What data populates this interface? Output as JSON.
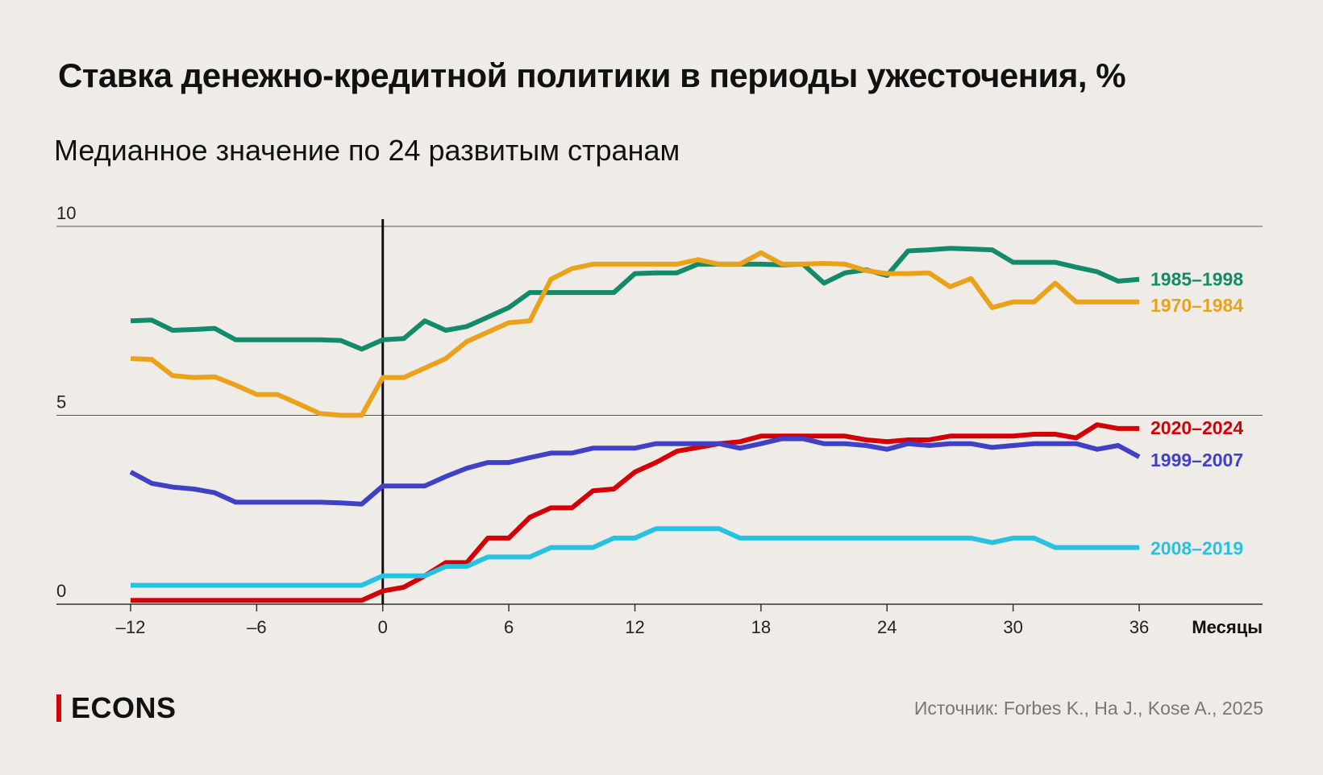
{
  "header": {
    "title": "Ставка денежно-кредитной политики в периоды ужесточения, %",
    "subtitle": "Медианное значение по 24 развитым странам"
  },
  "footer": {
    "logo": "ECONS",
    "source": "Источник: Forbes K., Ha J., Kose A., 2025"
  },
  "colors": {
    "background": "#efece7",
    "logo_accent": "#d30007"
  },
  "chart_data": {
    "type": "line",
    "title": "Ставка денежно-кредитной политики в периоды ужесточения, %",
    "subtitle": "Медианное значение по 24 развитым странам",
    "xlabel": "Месяцы",
    "ylabel": "",
    "xlim": [
      -12,
      36
    ],
    "ylim": [
      0,
      10
    ],
    "x_ticks": [
      "–12",
      "–6",
      "0",
      "6",
      "12",
      "18",
      "24",
      "30",
      "36"
    ],
    "y_ticks": [
      "0",
      "5",
      "10"
    ],
    "grid": "horizontal",
    "legend": "inline-right",
    "vertical_marker_x": 0,
    "x": [
      -12,
      -11,
      -10,
      -9,
      -8,
      -7,
      -6,
      -5,
      -4,
      -3,
      -2,
      -1,
      0,
      1,
      2,
      3,
      4,
      5,
      6,
      7,
      8,
      9,
      10,
      11,
      12,
      13,
      14,
      15,
      16,
      17,
      18,
      19,
      20,
      21,
      22,
      23,
      24,
      25,
      26,
      27,
      28,
      29,
      30,
      31,
      32,
      33,
      34,
      35,
      36
    ],
    "series": [
      {
        "name": "1985–1998",
        "color": "#138a6a",
        "values": [
          7.5,
          7.52,
          7.25,
          7.27,
          7.3,
          7.0,
          7.0,
          7.0,
          7.0,
          7.0,
          6.98,
          6.75,
          7.0,
          7.03,
          7.5,
          7.25,
          7.35,
          7.6,
          7.85,
          8.25,
          8.25,
          8.25,
          8.25,
          8.25,
          8.75,
          8.77,
          8.77,
          9.0,
          9.0,
          9.0,
          9.0,
          8.98,
          9.0,
          8.5,
          8.77,
          8.85,
          8.7,
          9.35,
          9.38,
          9.42,
          9.4,
          9.38,
          9.05,
          9.05,
          9.05,
          8.92,
          8.8,
          8.55,
          8.6
        ]
      },
      {
        "name": "1970–1984",
        "color": "#eaa21a",
        "values": [
          6.5,
          6.48,
          6.05,
          6.0,
          6.02,
          5.8,
          5.55,
          5.55,
          5.3,
          5.05,
          5.0,
          5.0,
          6.0,
          6.0,
          6.25,
          6.5,
          6.95,
          7.2,
          7.45,
          7.5,
          8.6,
          8.88,
          9.0,
          9.0,
          9.0,
          9.0,
          9.0,
          9.12,
          9.0,
          9.0,
          9.3,
          9.0,
          9.0,
          9.02,
          9.0,
          8.83,
          8.75,
          8.75,
          8.77,
          8.4,
          8.62,
          7.85,
          8.0,
          8.0,
          8.5,
          8.0,
          8.0,
          8.0,
          8.0
        ]
      },
      {
        "name": "2020–2024",
        "color": "#d30007",
        "values": [
          0.1,
          0.1,
          0.1,
          0.1,
          0.1,
          0.1,
          0.1,
          0.1,
          0.1,
          0.1,
          0.1,
          0.1,
          0.35,
          0.45,
          0.75,
          1.1,
          1.1,
          1.75,
          1.75,
          2.3,
          2.55,
          2.55,
          3.0,
          3.05,
          3.5,
          3.75,
          4.05,
          4.15,
          4.25,
          4.3,
          4.45,
          4.45,
          4.45,
          4.45,
          4.45,
          4.35,
          4.3,
          4.35,
          4.35,
          4.45,
          4.45,
          4.45,
          4.45,
          4.5,
          4.5,
          4.4,
          4.75,
          4.65,
          4.65
        ]
      },
      {
        "name": "1999–2007",
        "color": "#4041c4",
        "values": [
          3.5,
          3.2,
          3.1,
          3.05,
          2.95,
          2.7,
          2.7,
          2.7,
          2.7,
          2.7,
          2.68,
          2.65,
          3.13,
          3.13,
          3.13,
          3.38,
          3.6,
          3.75,
          3.75,
          3.88,
          4.0,
          4.0,
          4.13,
          4.13,
          4.13,
          4.25,
          4.25,
          4.25,
          4.25,
          4.13,
          4.25,
          4.38,
          4.38,
          4.25,
          4.25,
          4.2,
          4.1,
          4.25,
          4.2,
          4.25,
          4.25,
          4.15,
          4.2,
          4.25,
          4.25,
          4.25,
          4.1,
          4.2,
          3.9
        ]
      },
      {
        "name": "2008–2019",
        "color": "#28c2e0",
        "values": [
          0.5,
          0.5,
          0.5,
          0.5,
          0.5,
          0.5,
          0.5,
          0.5,
          0.5,
          0.5,
          0.5,
          0.5,
          0.75,
          0.75,
          0.75,
          1.0,
          1.0,
          1.25,
          1.25,
          1.25,
          1.5,
          1.5,
          1.5,
          1.75,
          1.75,
          2.0,
          2.0,
          2.0,
          2.0,
          1.75,
          1.75,
          1.75,
          1.75,
          1.75,
          1.75,
          1.75,
          1.75,
          1.75,
          1.75,
          1.75,
          1.75,
          1.63,
          1.75,
          1.75,
          1.5,
          1.5,
          1.5,
          1.5,
          1.5
        ]
      }
    ]
  }
}
